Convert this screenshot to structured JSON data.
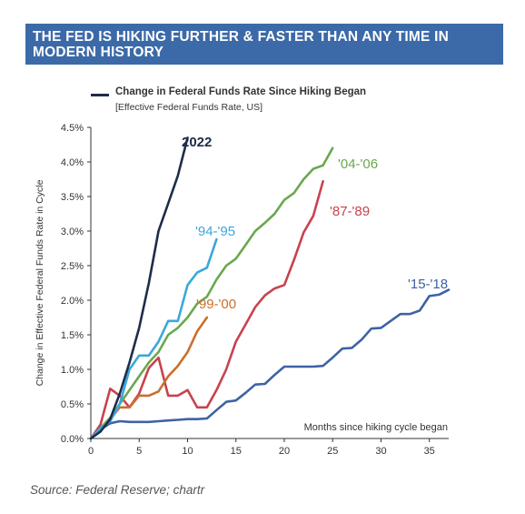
{
  "banner": {
    "title": "THE FED IS HIKING FURTHER & FASTER THAN ANY TIME IN MODERN HISTORY"
  },
  "source": "Source: Federal Reserve; chartr",
  "chart_data": {
    "type": "line",
    "legend": {
      "label": "Change in Federal Funds Rate Since Hiking Began",
      "sublabel": "[Effective Federal Funds Rate, US]",
      "placement": "top-left"
    },
    "ylabel": "Change in Effective Federal Funds Rate in Cycle",
    "xlabel": "Months since hiking cycle began",
    "xlim": [
      0,
      37
    ],
    "ylim": [
      0,
      4.5
    ],
    "x_ticks": [
      0,
      5,
      10,
      15,
      20,
      25,
      30,
      35
    ],
    "y_ticks": [
      0,
      0.5,
      1.0,
      1.5,
      2.0,
      2.5,
      3.0,
      3.5,
      4.0,
      4.5
    ],
    "y_tick_labels": [
      "0.0%",
      "0.5%",
      "1.0%",
      "1.5%",
      "2.0%",
      "2.5%",
      "3.0%",
      "3.5%",
      "4.0%",
      "4.5%"
    ],
    "x_tick_labels": [
      "0",
      "5",
      "10",
      "15",
      "20",
      "25",
      "30",
      "35"
    ],
    "grid": false,
    "series": [
      {
        "name": "'15-'18",
        "color": "#3e63a3",
        "x": [
          0,
          1,
          2,
          3,
          4,
          5,
          6,
          7,
          8,
          9,
          10,
          11,
          12,
          13,
          14,
          15,
          16,
          17,
          18,
          19,
          20,
          21,
          22,
          23,
          24,
          25,
          26,
          27,
          28,
          29,
          30,
          31,
          32,
          33,
          34,
          35,
          36,
          37
        ],
        "y": [
          0,
          0.13,
          0.22,
          0.25,
          0.24,
          0.24,
          0.24,
          0.25,
          0.26,
          0.27,
          0.28,
          0.28,
          0.29,
          0.41,
          0.53,
          0.55,
          0.66,
          0.78,
          0.79,
          0.92,
          1.04,
          1.04,
          1.04,
          1.04,
          1.05,
          1.17,
          1.3,
          1.31,
          1.43,
          1.59,
          1.6,
          1.7,
          1.8,
          1.8,
          1.85,
          2.06,
          2.08,
          2.15
        ]
      },
      {
        "name": "'87-'89",
        "color": "#c8424e",
        "x": [
          0,
          1,
          2,
          3,
          4,
          5,
          6,
          7,
          8,
          9,
          10,
          11,
          12,
          13,
          14,
          15,
          16,
          17,
          18,
          19,
          20,
          21,
          22,
          23,
          24
        ],
        "y": [
          0,
          0.2,
          0.72,
          0.62,
          0.45,
          0.65,
          1.02,
          1.17,
          0.62,
          0.62,
          0.7,
          0.45,
          0.45,
          0.7,
          1.0,
          1.4,
          1.65,
          1.9,
          2.07,
          2.17,
          2.22,
          2.58,
          2.98,
          3.22,
          3.72
        ]
      },
      {
        "name": "'99-'00",
        "color": "#ca6f2c",
        "x": [
          0,
          1,
          2,
          3,
          4,
          5,
          6,
          7,
          8,
          9,
          10,
          11,
          12
        ],
        "y": [
          0,
          0.15,
          0.28,
          0.45,
          0.45,
          0.62,
          0.62,
          0.68,
          0.9,
          1.05,
          1.25,
          1.55,
          1.75
        ]
      },
      {
        "name": "'04-'06",
        "color": "#69a84f",
        "x": [
          0,
          1,
          2,
          3,
          4,
          5,
          6,
          7,
          8,
          9,
          10,
          11,
          12,
          13,
          14,
          15,
          16,
          17,
          18,
          19,
          20,
          21,
          22,
          23,
          24,
          25
        ],
        "y": [
          0,
          0.15,
          0.3,
          0.5,
          0.7,
          0.9,
          1.1,
          1.25,
          1.5,
          1.6,
          1.75,
          1.95,
          2.05,
          2.3,
          2.5,
          2.6,
          2.8,
          3.0,
          3.12,
          3.25,
          3.45,
          3.55,
          3.75,
          3.9,
          3.95,
          4.2
        ]
      },
      {
        "name": "'94-'95",
        "color": "#3aa8dc",
        "x": [
          0,
          1,
          2,
          3,
          4,
          5,
          6,
          7,
          8,
          9,
          10,
          11,
          12,
          13
        ],
        "y": [
          0,
          0.15,
          0.25,
          0.5,
          1.0,
          1.2,
          1.2,
          1.4,
          1.7,
          1.7,
          2.22,
          2.4,
          2.47,
          2.88
        ]
      },
      {
        "name": "2022",
        "color": "#1d2d4a",
        "x": [
          0,
          1,
          2,
          3,
          4,
          5,
          6,
          7,
          8,
          9,
          10
        ],
        "y": [
          0,
          0.1,
          0.28,
          0.65,
          1.1,
          1.6,
          2.25,
          3.0,
          3.4,
          3.8,
          4.35
        ]
      }
    ]
  }
}
